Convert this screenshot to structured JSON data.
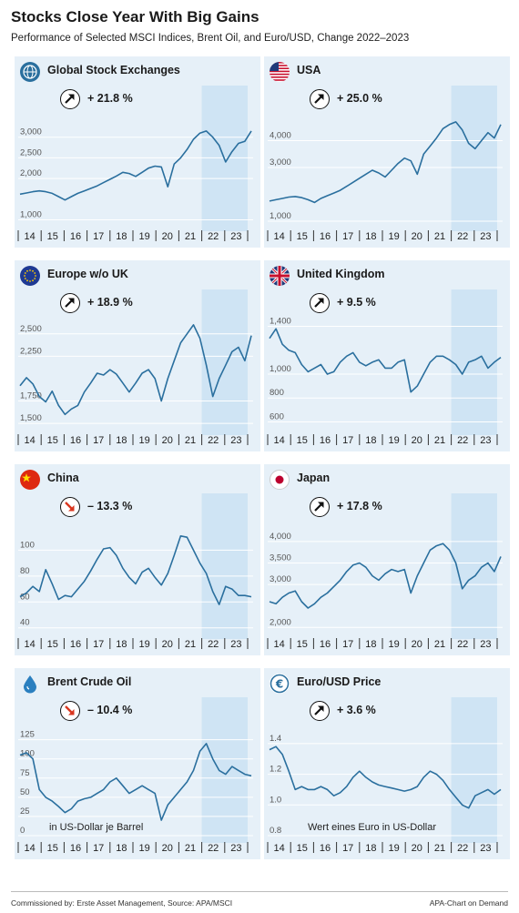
{
  "title": "Stocks Close Year With Big Gains",
  "subtitle": "Performance of Selected MSCI Indices, Brent Oil, and Euro/USD, Change 2022–2023",
  "footer_left": "Commissioned by: Erste Asset Management, Source: APA/MSCI",
  "footer_right": "APA-Chart on Demand",
  "colors": {
    "line": "#2a6f9e",
    "panel_bg": "#e6f0f8",
    "highlight": "#cfe4f4",
    "down_arrow": "#d9361f"
  },
  "chart_data": [
    {
      "type": "line",
      "name": "Global Stock Exchanges",
      "icon": "globe-icon",
      "change": "+ 21.8 %",
      "direction": "up",
      "x_ticks": [
        "14",
        "15",
        "16",
        "17",
        "18",
        "19",
        "20",
        "21",
        "22",
        "23"
      ],
      "ylim": [
        900,
        3500
      ],
      "y_ticks": [
        {
          "v": 1000,
          "label": "1,000"
        },
        {
          "v": 2000,
          "label": "2,000"
        },
        {
          "v": 2500,
          "label": "2,500"
        },
        {
          "v": 3000,
          "label": "3,000"
        }
      ],
      "values": [
        1620,
        1650,
        1680,
        1700,
        1680,
        1640,
        1560,
        1480,
        1560,
        1640,
        1700,
        1760,
        1820,
        1900,
        1980,
        2060,
        2150,
        2120,
        2050,
        2150,
        2250,
        2300,
        2280,
        1800,
        2350,
        2500,
        2700,
        2950,
        3100,
        3150,
        3000,
        2800,
        2400,
        2650,
        2850,
        2900,
        3150
      ]
    },
    {
      "type": "line",
      "name": "USA",
      "icon": "us-flag-icon",
      "change": "+ 25.0 %",
      "direction": "up",
      "x_ticks": [
        "14",
        "15",
        "16",
        "17",
        "18",
        "19",
        "20",
        "21",
        "22",
        "23"
      ],
      "ylim": [
        900,
        4900
      ],
      "y_ticks": [
        {
          "v": 1000,
          "label": "1,000"
        },
        {
          "v": 3000,
          "label": "3,000"
        },
        {
          "v": 4000,
          "label": "4,000"
        }
      ],
      "values": [
        1750,
        1800,
        1850,
        1900,
        1920,
        1880,
        1800,
        1700,
        1850,
        1950,
        2050,
        2150,
        2300,
        2450,
        2600,
        2750,
        2900,
        2800,
        2650,
        2900,
        3150,
        3350,
        3250,
        2750,
        3500,
        3800,
        4100,
        4450,
        4600,
        4700,
        4400,
        3900,
        3700,
        4000,
        4300,
        4100,
        4600
      ]
    },
    {
      "type": "line",
      "name": "Europe w/o UK",
      "icon": "eu-flag-icon",
      "change": "+ 18.9 %",
      "direction": "up",
      "x_ticks": [
        "14",
        "15",
        "16",
        "17",
        "18",
        "19",
        "20",
        "21",
        "22",
        "23"
      ],
      "ylim": [
        1450,
        2650
      ],
      "y_ticks": [
        {
          "v": 1500,
          "label": "1,500"
        },
        {
          "v": 1750,
          "label": "1,750"
        },
        {
          "v": 2250,
          "label": "2,250"
        },
        {
          "v": 2500,
          "label": "2,500"
        }
      ],
      "values": [
        1920,
        2010,
        1940,
        1800,
        1740,
        1860,
        1700,
        1600,
        1660,
        1700,
        1850,
        1950,
        2060,
        2040,
        2100,
        2050,
        1950,
        1850,
        1950,
        2060,
        2100,
        2000,
        1750,
        2000,
        2200,
        2400,
        2500,
        2600,
        2450,
        2150,
        1800,
        2000,
        2150,
        2300,
        2350,
        2200,
        2480
      ]
    },
    {
      "type": "line",
      "name": "United Kingdom",
      "icon": "uk-flag-icon",
      "change": "+ 9.5 %",
      "direction": "up",
      "x_ticks": [
        "14",
        "15",
        "16",
        "17",
        "18",
        "19",
        "20",
        "21",
        "22",
        "23"
      ],
      "ylim": [
        550,
        1450
      ],
      "y_ticks": [
        {
          "v": 600,
          "label": "600"
        },
        {
          "v": 800,
          "label": "800"
        },
        {
          "v": 1000,
          "label": "1,000"
        },
        {
          "v": 1400,
          "label": "1,400"
        }
      ],
      "values": [
        1300,
        1380,
        1250,
        1200,
        1180,
        1080,
        1020,
        1050,
        1080,
        1000,
        1020,
        1100,
        1150,
        1180,
        1100,
        1070,
        1100,
        1120,
        1050,
        1050,
        1100,
        1120,
        850,
        900,
        1000,
        1100,
        1150,
        1150,
        1120,
        1080,
        1000,
        1100,
        1120,
        1150,
        1050,
        1100,
        1140
      ]
    },
    {
      "type": "line",
      "name": "China",
      "icon": "china-flag-icon",
      "change": "– 13.3 %",
      "direction": "down",
      "x_ticks": [
        "14",
        "15",
        "16",
        "17",
        "18",
        "19",
        "20",
        "21",
        "22",
        "23"
      ],
      "ylim": [
        37,
        120
      ],
      "y_ticks": [
        {
          "v": 40,
          "label": "40"
        },
        {
          "v": 60,
          "label": "60"
        },
        {
          "v": 80,
          "label": "80"
        },
        {
          "v": 100,
          "label": "100"
        }
      ],
      "values": [
        64,
        67,
        72,
        68,
        85,
        74,
        62,
        65,
        64,
        70,
        76,
        84,
        93,
        101,
        102,
        96,
        86,
        79,
        74,
        83,
        86,
        79,
        73,
        82,
        96,
        111,
        110,
        100,
        90,
        82,
        68,
        58,
        72,
        70,
        65,
        65,
        64
      ]
    },
    {
      "type": "line",
      "name": "Japan",
      "icon": "japan-flag-icon",
      "change": "+ 17.8 %",
      "direction": "up",
      "x_ticks": [
        "14",
        "15",
        "16",
        "17",
        "18",
        "19",
        "20",
        "21",
        "22",
        "23"
      ],
      "ylim": [
        1900,
        4400
      ],
      "y_ticks": [
        {
          "v": 2000,
          "label": "2,000"
        },
        {
          "v": 3000,
          "label": "3,000"
        },
        {
          "v": 3500,
          "label": "3,500"
        },
        {
          "v": 4000,
          "label": "4,000"
        }
      ],
      "values": [
        2600,
        2550,
        2700,
        2800,
        2850,
        2600,
        2450,
        2550,
        2700,
        2800,
        2950,
        3100,
        3300,
        3450,
        3500,
        3400,
        3200,
        3100,
        3250,
        3350,
        3300,
        3350,
        2800,
        3200,
        3500,
        3800,
        3900,
        3950,
        3800,
        3500,
        2900,
        3100,
        3200,
        3400,
        3500,
        3300,
        3650
      ]
    },
    {
      "type": "line",
      "name": "Brent Crude Oil",
      "icon": "oil-drop-icon",
      "change": "– 10.4 %",
      "direction": "down",
      "x_ticks": [
        "14",
        "15",
        "16",
        "17",
        "18",
        "19",
        "20",
        "21",
        "22",
        "23"
      ],
      "ylim": [
        0,
        140
      ],
      "y_ticks": [
        {
          "v": 0,
          "label": "0"
        },
        {
          "v": 25,
          "label": "25"
        },
        {
          "v": 50,
          "label": "50"
        },
        {
          "v": 75,
          "label": "75"
        },
        {
          "v": 100,
          "label": "100"
        },
        {
          "v": 125,
          "label": "125"
        }
      ],
      "values": [
        105,
        108,
        100,
        60,
        50,
        45,
        38,
        30,
        35,
        45,
        48,
        50,
        55,
        60,
        70,
        75,
        65,
        55,
        60,
        65,
        60,
        55,
        20,
        40,
        50,
        60,
        70,
        85,
        110,
        120,
        100,
        85,
        80,
        90,
        85,
        80,
        78
      ],
      "note": "in US-Dollar je Barrel"
    },
    {
      "type": "line",
      "name": "Euro/USD Price",
      "icon": "euro-coin-icon",
      "change": "+ 3.6 %",
      "direction": "up",
      "x_ticks": [
        "14",
        "15",
        "16",
        "17",
        "18",
        "19",
        "20",
        "21",
        "22",
        "23"
      ],
      "ylim": [
        0.8,
        1.5
      ],
      "y_ticks": [
        {
          "v": 0.8,
          "label": "0.8"
        },
        {
          "v": 1.0,
          "label": "1.0"
        },
        {
          "v": 1.2,
          "label": "1.2"
        },
        {
          "v": 1.4,
          "label": "1.4"
        }
      ],
      "values": [
        1.36,
        1.38,
        1.33,
        1.22,
        1.1,
        1.12,
        1.1,
        1.1,
        1.12,
        1.1,
        1.06,
        1.08,
        1.12,
        1.18,
        1.22,
        1.18,
        1.15,
        1.13,
        1.12,
        1.11,
        1.1,
        1.09,
        1.1,
        1.12,
        1.18,
        1.22,
        1.2,
        1.16,
        1.1,
        1.05,
        1.0,
        0.98,
        1.06,
        1.08,
        1.1,
        1.07,
        1.1
      ],
      "note": "Wert eines Euro in US-Dollar"
    }
  ]
}
